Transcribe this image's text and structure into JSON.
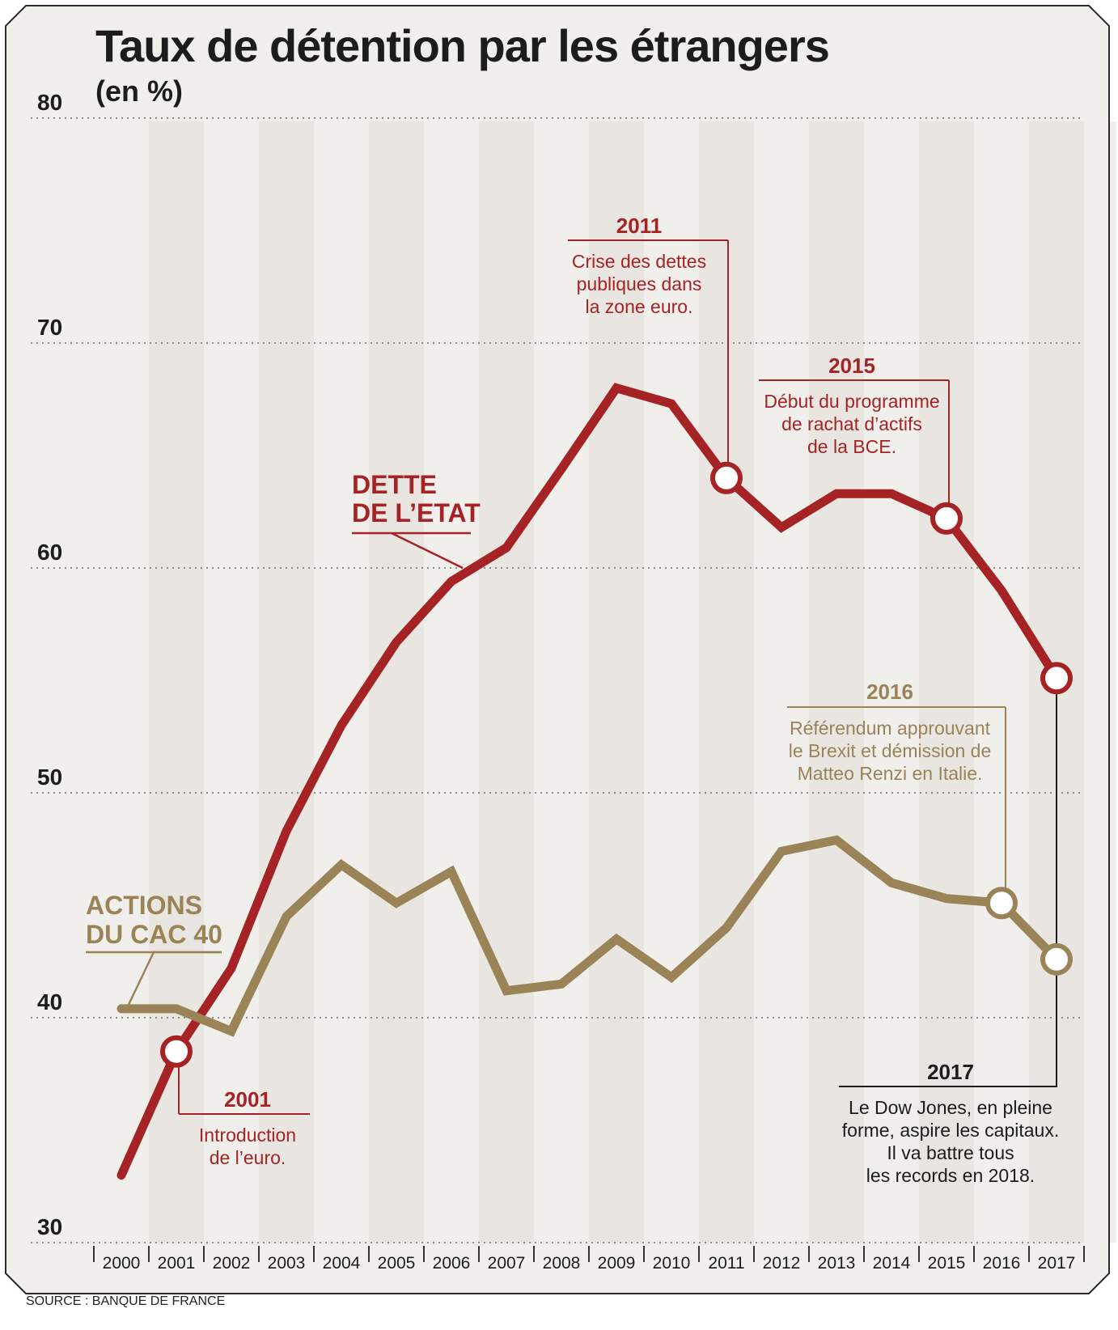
{
  "title": "Taux de détention par les étrangers",
  "subtitle": "(en %)",
  "source": "SOURCE : BANQUE DE FRANCE",
  "colors": {
    "dette": "#a52324",
    "actions": "#9b8358",
    "black": "#1c1c1c",
    "stripe": "#e9e6e1",
    "background": "#f1efec"
  },
  "chart_data": {
    "type": "line",
    "x": [
      "2000",
      "2001",
      "2002",
      "2003",
      "2004",
      "2005",
      "2006",
      "2007",
      "2008",
      "2009",
      "2010",
      "2011",
      "2012",
      "2013",
      "2014",
      "2015",
      "2016",
      "2017"
    ],
    "y_ticks": [
      "30",
      "40",
      "50",
      "60",
      "70",
      "80"
    ],
    "ylim": [
      30,
      80
    ],
    "grid": "dotted horizontal",
    "series": [
      {
        "name": "DETTE DE L'ETAT",
        "label_lines": [
          "DETTE",
          "DE L’ETAT"
        ],
        "color": "#a52324",
        "values": [
          33,
          38.5,
          42.2,
          48.3,
          53.0,
          56.7,
          59.4,
          60.9,
          64.4,
          68.0,
          67.3,
          64.0,
          61.8,
          63.3,
          63.3,
          62.2,
          59.0,
          55.1
        ]
      },
      {
        "name": "ACTIONS DU CAC 40",
        "label_lines": [
          "ACTIONS",
          "DU CAC 40"
        ],
        "color": "#9b8358",
        "values": [
          40.4,
          40.4,
          39.4,
          44.5,
          46.8,
          45.1,
          46.5,
          41.2,
          41.5,
          43.5,
          41.8,
          44.0,
          47.4,
          47.9,
          46.0,
          45.3,
          45.1,
          42.6
        ]
      }
    ],
    "annotations": [
      {
        "year": "2001",
        "series": "DETTE DE L'ETAT",
        "lines": [
          "Introduction",
          "de l’euro."
        ],
        "color": "#a52324"
      },
      {
        "year": "2011",
        "series": "DETTE DE L'ETAT",
        "lines": [
          "Crise des dettes",
          "publiques dans",
          "la zone euro."
        ],
        "color": "#a52324"
      },
      {
        "year": "2015",
        "series": "DETTE DE L'ETAT",
        "lines": [
          "Début du programme",
          "de rachat d’actifs",
          "de la BCE."
        ],
        "color": "#a52324"
      },
      {
        "year": "2016",
        "series": "ACTIONS DU CAC 40",
        "lines": [
          "Référendum approuvant",
          "le Brexit et démission de",
          "Matteo Renzi en Italie."
        ],
        "color": "#9b8358"
      },
      {
        "year": "2017",
        "series": "both",
        "lines": [
          "Le Dow Jones, en pleine",
          "forme, aspire les capitaux.",
          "Il va battre tous",
          "les records en 2018."
        ],
        "color": "#1c1c1c"
      }
    ]
  }
}
